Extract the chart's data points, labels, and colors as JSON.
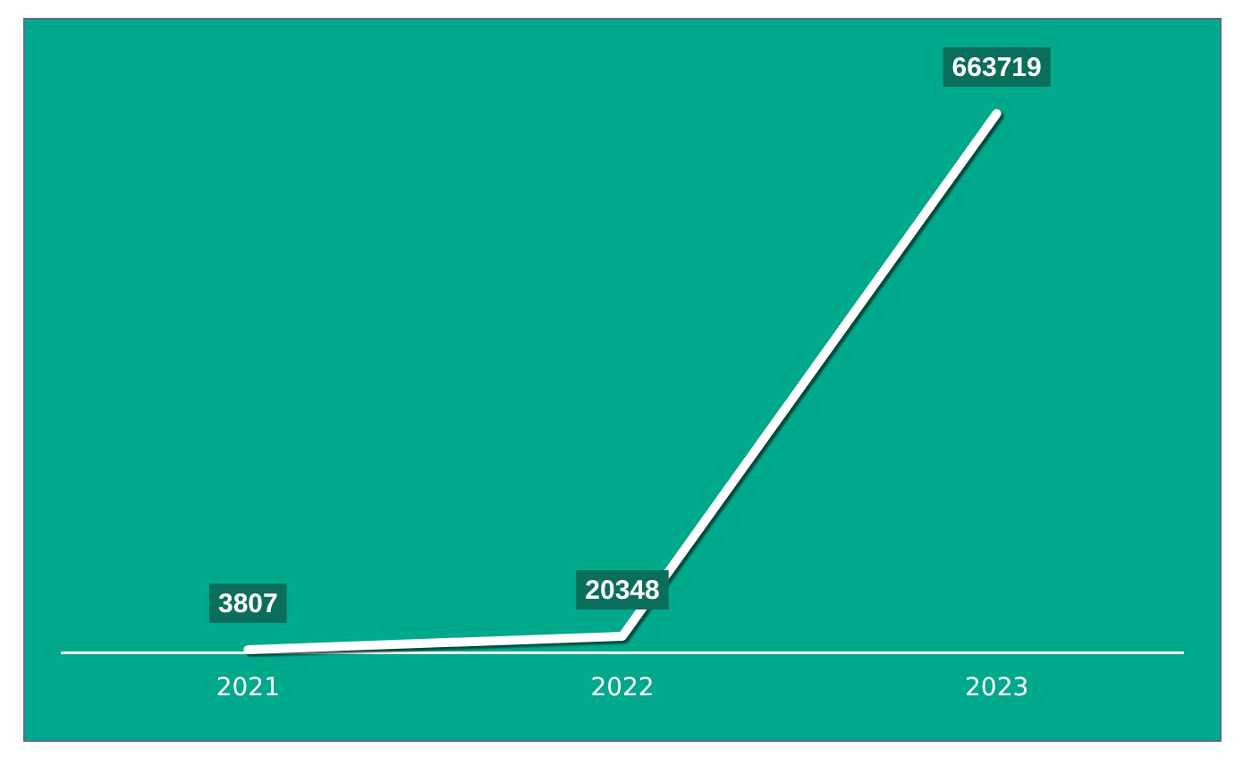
{
  "chart_data": {
    "type": "line",
    "categories": [
      "2021",
      "2022",
      "2023"
    ],
    "values": [
      3807,
      20348,
      663719
    ],
    "color": "#ffffff",
    "data_labels": true,
    "grid": false,
    "legend": false,
    "marker": "none",
    "line_style": "solid"
  }
}
